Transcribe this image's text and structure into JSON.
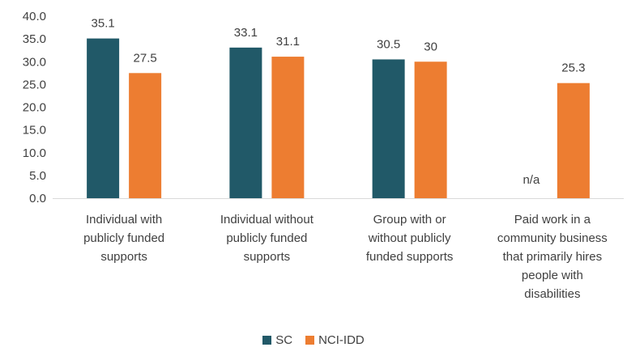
{
  "chart_data": {
    "type": "bar",
    "categories": [
      [
        "Individual with",
        "publicly funded",
        "supports"
      ],
      [
        "Individual without",
        "publicly funded",
        "supports"
      ],
      [
        "Group with or",
        "without publicly",
        "funded supports"
      ],
      [
        "Paid work in a",
        "community business",
        "that primarily hires",
        "people with",
        "disabilities"
      ]
    ],
    "series": [
      {
        "name": "SC",
        "color": "#215968",
        "values": [
          35.1,
          33.1,
          30.5,
          null
        ],
        "labels": [
          "35.1",
          "33.1",
          "30.5",
          "n/a"
        ]
      },
      {
        "name": "NCI-IDD",
        "color": "#ED7D31",
        "values": [
          27.5,
          31.1,
          30,
          25.3
        ],
        "labels": [
          "27.5",
          "31.1",
          "30",
          "25.3"
        ]
      }
    ],
    "y_ticks": [
      "0.0",
      "5.0",
      "10.0",
      "15.0",
      "20.0",
      "25.0",
      "30.0",
      "35.0",
      "40.0"
    ],
    "ylim": [
      0,
      40
    ],
    "grid": false,
    "legend_position": "bottom",
    "title": "",
    "xlabel": "",
    "ylabel": ""
  }
}
